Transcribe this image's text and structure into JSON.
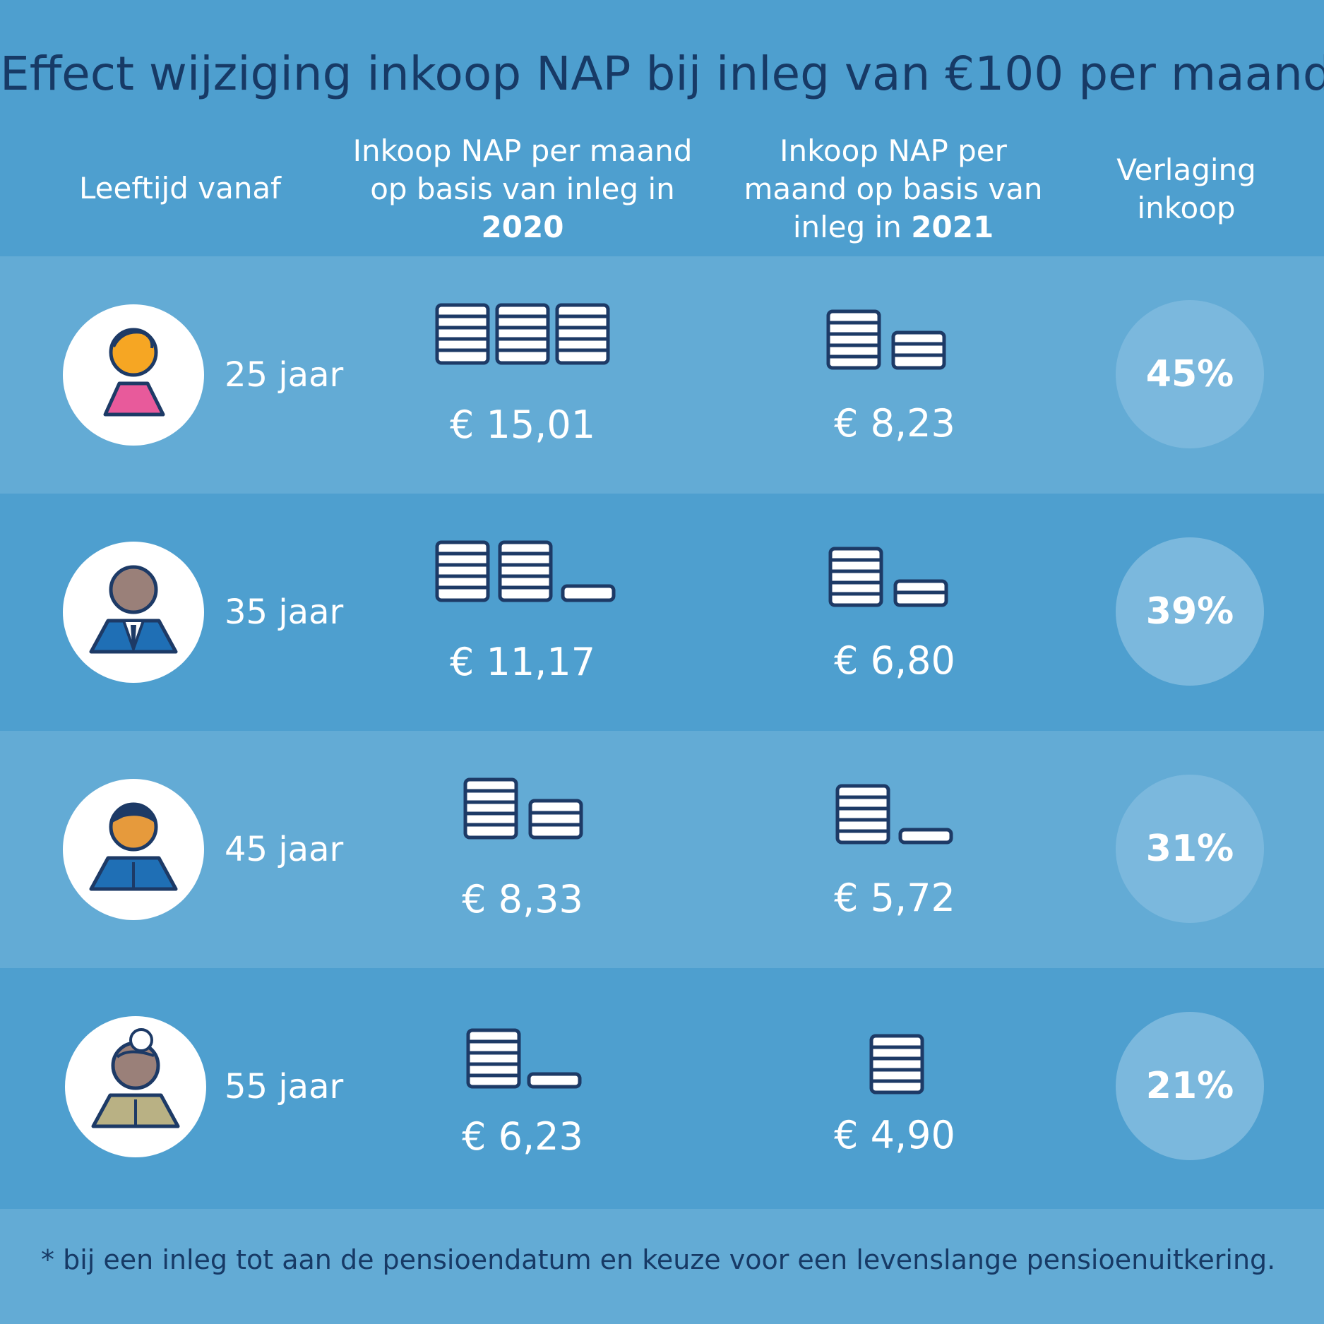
{
  "title": "Effect wijziging inkoop NAP bij inleg van €100 per maand",
  "title_marker": "*",
  "headers": {
    "age": "Leeftijd vanaf",
    "col2020_prefix_line1": "Inkoop NAP per maand",
    "col2020_prefix_line2": "op basis van inleg in",
    "col2020_year": "2020",
    "col2021_prefix_line1": "Inkoop NAP per",
    "col2021_prefix_line2": "maand op basis van",
    "col2021_prefix_line3": "inleg in",
    "col2021_year": "2021",
    "reduction_line1": "Verlaging",
    "reduction_line2": "inkoop"
  },
  "rows": [
    {
      "age": "25 jaar",
      "amount_2020": "€ 15,01",
      "amount_2021": "€ 8,23",
      "reduction": "45%"
    },
    {
      "age": "35 jaar",
      "amount_2020": "€ 11,17",
      "amount_2021": "€ 6,80",
      "reduction": "39%"
    },
    {
      "age": "45 jaar",
      "amount_2020": "€ 8,33",
      "amount_2021": "€ 5,72",
      "reduction": "31%"
    },
    {
      "age": "55 jaar",
      "amount_2020": "€ 6,23",
      "amount_2021": "€ 4,90",
      "reduction": "21%"
    }
  ],
  "footnote": "* bij een inleg tot aan de pensioendatum en keuze voor een levenslange pensioenuitkering.",
  "colors": {
    "background": "#4e9fcf",
    "row_light": "#63abd5",
    "title": "#173a66",
    "coin_outline": "#1d3a66"
  }
}
